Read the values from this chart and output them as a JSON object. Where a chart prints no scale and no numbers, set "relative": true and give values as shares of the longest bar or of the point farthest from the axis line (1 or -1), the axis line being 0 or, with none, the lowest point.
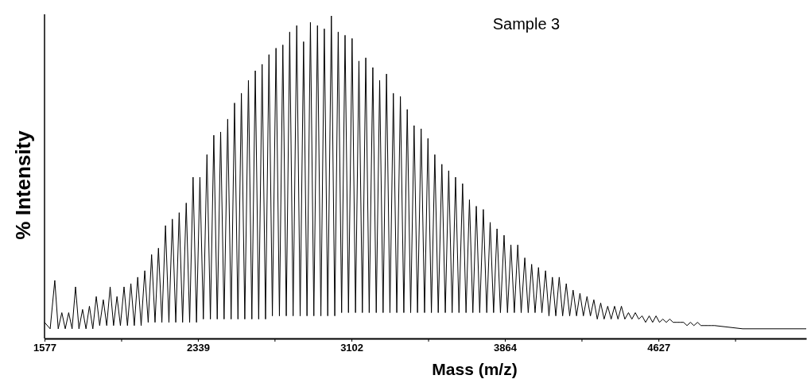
{
  "chart_data": {
    "type": "line",
    "title": "Sample 3",
    "xlabel": "Mass (m/z)",
    "ylabel": "% Intensity",
    "relative": true,
    "xlim": [
      1577,
      5361
    ],
    "xticks": [
      1577,
      {
        "value": 1958,
        "label": null
      },
      2339,
      {
        "value": 2720,
        "label": null
      },
      3102,
      {
        "value": 3483,
        "label": null
      },
      3864,
      {
        "value": 4245,
        "label": null
      },
      4627,
      {
        "value": 5008,
        "label": null
      }
    ],
    "series": [
      {
        "color": "#000000",
        "x": [
          1577,
          1605,
          1628,
          1645,
          1663,
          1680,
          1697,
          1714,
          1731,
          1748,
          1766,
          1783,
          1800,
          1817,
          1834,
          1851,
          1869,
          1886,
          1903,
          1920,
          1937,
          1954,
          1972,
          1989,
          2006,
          2023,
          2040,
          2057,
          2075,
          2092,
          2109,
          2126,
          2143,
          2160,
          2178,
          2195,
          2212,
          2229,
          2246,
          2263,
          2281,
          2298,
          2315,
          2332,
          2349,
          2366,
          2384,
          2401,
          2418,
          2435,
          2452,
          2469,
          2487,
          2504,
          2521,
          2538,
          2555,
          2572,
          2590,
          2607,
          2624,
          2641,
          2658,
          2675,
          2692,
          2709,
          2727,
          2744,
          2761,
          2778,
          2795,
          2812,
          2830,
          2847,
          2864,
          2881,
          2898,
          2915,
          2933,
          2950,
          2967,
          2984,
          3002,
          3019,
          3036,
          3053,
          3070,
          3087,
          3105,
          3122,
          3139,
          3156,
          3173,
          3190,
          3208,
          3225,
          3242,
          3259,
          3276,
          3293,
          3310,
          3327,
          3345,
          3362,
          3379,
          3396,
          3413,
          3430,
          3448,
          3465,
          3482,
          3499,
          3516,
          3533,
          3551,
          3568,
          3585,
          3602,
          3619,
          3636,
          3654,
          3671,
          3688,
          3705,
          3722,
          3739,
          3757,
          3774,
          3791,
          3808,
          3825,
          3842,
          3860,
          3877,
          3894,
          3911,
          3928,
          3945,
          3963,
          3980,
          3997,
          4014,
          4031,
          4048,
          4066,
          4083,
          4100,
          4117,
          4134,
          4151,
          4169,
          4186,
          4203,
          4220,
          4237,
          4254,
          4272,
          4289,
          4306,
          4323,
          4340,
          4357,
          4375,
          4392,
          4409,
          4426,
          4443,
          4460,
          4478,
          4495,
          4512,
          4529,
          4546,
          4563,
          4581,
          4598,
          4615,
          4632,
          4649,
          4666,
          4683,
          4700,
          4718,
          4735,
          4752,
          4769,
          4786,
          4803,
          4821,
          4838,
          4855,
          4872,
          4889,
          4906,
          5045,
          5361
        ],
        "values": [
          0.05,
          0.03,
          0.18,
          0.03,
          0.08,
          0.03,
          0.08,
          0.03,
          0.16,
          0.03,
          0.09,
          0.03,
          0.1,
          0.03,
          0.13,
          0.04,
          0.12,
          0.04,
          0.16,
          0.04,
          0.13,
          0.04,
          0.16,
          0.04,
          0.17,
          0.04,
          0.19,
          0.04,
          0.21,
          0.05,
          0.26,
          0.05,
          0.28,
          0.05,
          0.35,
          0.05,
          0.37,
          0.05,
          0.39,
          0.05,
          0.42,
          0.05,
          0.5,
          0.05,
          0.5,
          0.06,
          0.57,
          0.06,
          0.63,
          0.06,
          0.64,
          0.06,
          0.68,
          0.06,
          0.73,
          0.06,
          0.76,
          0.06,
          0.8,
          0.06,
          0.83,
          0.06,
          0.85,
          0.06,
          0.88,
          0.07,
          0.9,
          0.07,
          0.91,
          0.07,
          0.95,
          0.07,
          0.97,
          0.07,
          0.92,
          0.07,
          0.98,
          0.07,
          0.97,
          0.07,
          0.96,
          0.07,
          1.0,
          0.07,
          0.95,
          0.08,
          0.94,
          0.08,
          0.93,
          0.08,
          0.86,
          0.08,
          0.87,
          0.08,
          0.84,
          0.08,
          0.8,
          0.08,
          0.82,
          0.08,
          0.76,
          0.08,
          0.75,
          0.08,
          0.71,
          0.08,
          0.66,
          0.08,
          0.65,
          0.08,
          0.62,
          0.08,
          0.57,
          0.08,
          0.54,
          0.08,
          0.52,
          0.08,
          0.5,
          0.08,
          0.48,
          0.08,
          0.43,
          0.08,
          0.41,
          0.08,
          0.4,
          0.08,
          0.36,
          0.08,
          0.34,
          0.08,
          0.32,
          0.08,
          0.29,
          0.08,
          0.29,
          0.08,
          0.25,
          0.08,
          0.23,
          0.08,
          0.22,
          0.08,
          0.21,
          0.07,
          0.19,
          0.07,
          0.19,
          0.07,
          0.17,
          0.07,
          0.15,
          0.07,
          0.14,
          0.07,
          0.13,
          0.07,
          0.12,
          0.06,
          0.11,
          0.06,
          0.1,
          0.06,
          0.1,
          0.06,
          0.1,
          0.06,
          0.08,
          0.06,
          0.08,
          0.06,
          0.07,
          0.05,
          0.07,
          0.05,
          0.07,
          0.05,
          0.06,
          0.05,
          0.06,
          0.05,
          0.05,
          0.05,
          0.05,
          0.04,
          0.05,
          0.04,
          0.05,
          0.04,
          0.04,
          0.04,
          0.04,
          0.04,
          0.03,
          0.03
        ]
      }
    ]
  }
}
